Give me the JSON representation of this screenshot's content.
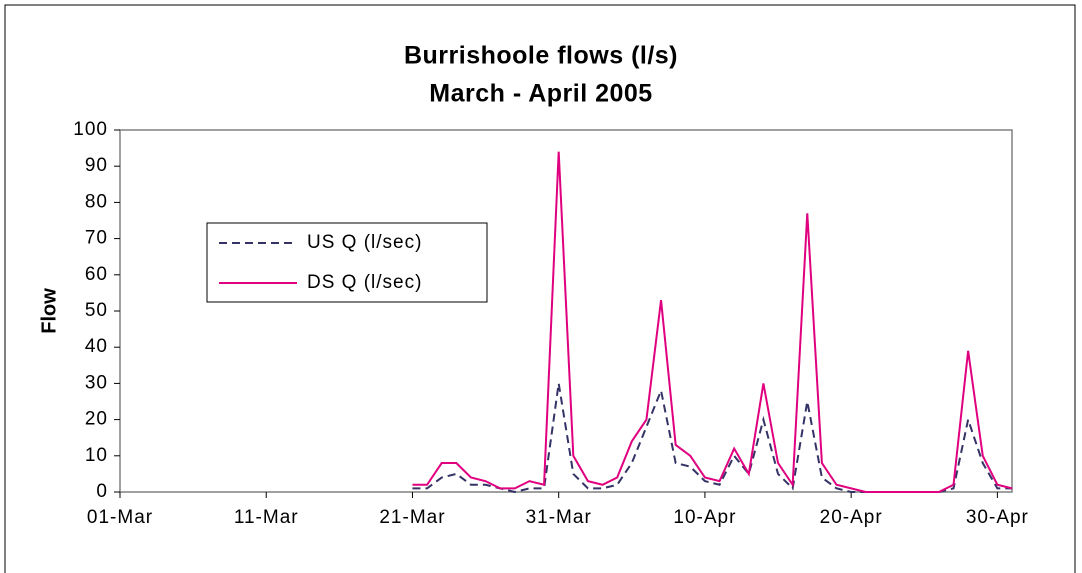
{
  "chart_data": {
    "type": "line",
    "title": "Burrishoole flows (l/s)",
    "subtitle": "March - April 2005",
    "y_label": "Flow",
    "x": [
      "21-Mar",
      "22-Mar",
      "23-Mar",
      "24-Mar",
      "25-Mar",
      "26-Mar",
      "27-Mar",
      "28-Mar",
      "29-Mar",
      "30-Mar",
      "31-Mar",
      "01-Apr",
      "02-Apr",
      "03-Apr",
      "04-Apr",
      "05-Apr",
      "06-Apr",
      "07-Apr",
      "08-Apr",
      "09-Apr",
      "10-Apr",
      "11-Apr",
      "12-Apr",
      "13-Apr",
      "14-Apr",
      "15-Apr",
      "16-Apr",
      "17-Apr",
      "18-Apr",
      "19-Apr",
      "20-Apr",
      "21-Apr",
      "22-Apr",
      "23-Apr",
      "24-Apr",
      "25-Apr",
      "26-Apr",
      "27-Apr",
      "28-Apr",
      "29-Apr",
      "30-Apr",
      "01-May"
    ],
    "series": [
      {
        "name": "US Q (l/sec)",
        "color": "#333366",
        "dashed": true,
        "values": [
          1,
          1,
          4,
          5,
          2,
          2,
          1,
          0,
          1,
          1,
          30,
          5,
          1,
          1,
          2,
          8,
          18,
          28,
          8,
          7,
          3,
          2,
          10,
          5,
          20,
          5,
          1,
          25,
          4,
          1,
          0,
          0,
          0,
          0,
          0,
          0,
          0,
          1,
          20,
          8,
          1,
          1
        ]
      },
      {
        "name": "DS Q (l/sec)",
        "color": "#e0007f",
        "dashed": false,
        "values": [
          2,
          2,
          8,
          8,
          4,
          3,
          1,
          1,
          3,
          2,
          94,
          10,
          3,
          2,
          4,
          14,
          20,
          53,
          13,
          10,
          4,
          3,
          12,
          5,
          30,
          8,
          2,
          77,
          8,
          2,
          1,
          0,
          0,
          0,
          0,
          0,
          0,
          2,
          39,
          10,
          2,
          1
        ]
      }
    ],
    "xlim": [
      "01-Mar",
      "01-May"
    ],
    "xticks": [
      "01-Mar",
      "11-Mar",
      "21-Mar",
      "31-Mar",
      "10-Apr",
      "20-Apr",
      "30-Apr"
    ],
    "ylim": [
      0,
      100
    ],
    "yticks": [
      0,
      10,
      20,
      30,
      40,
      50,
      60,
      70,
      80,
      90,
      100
    ],
    "legend": "left",
    "grid": false
  }
}
